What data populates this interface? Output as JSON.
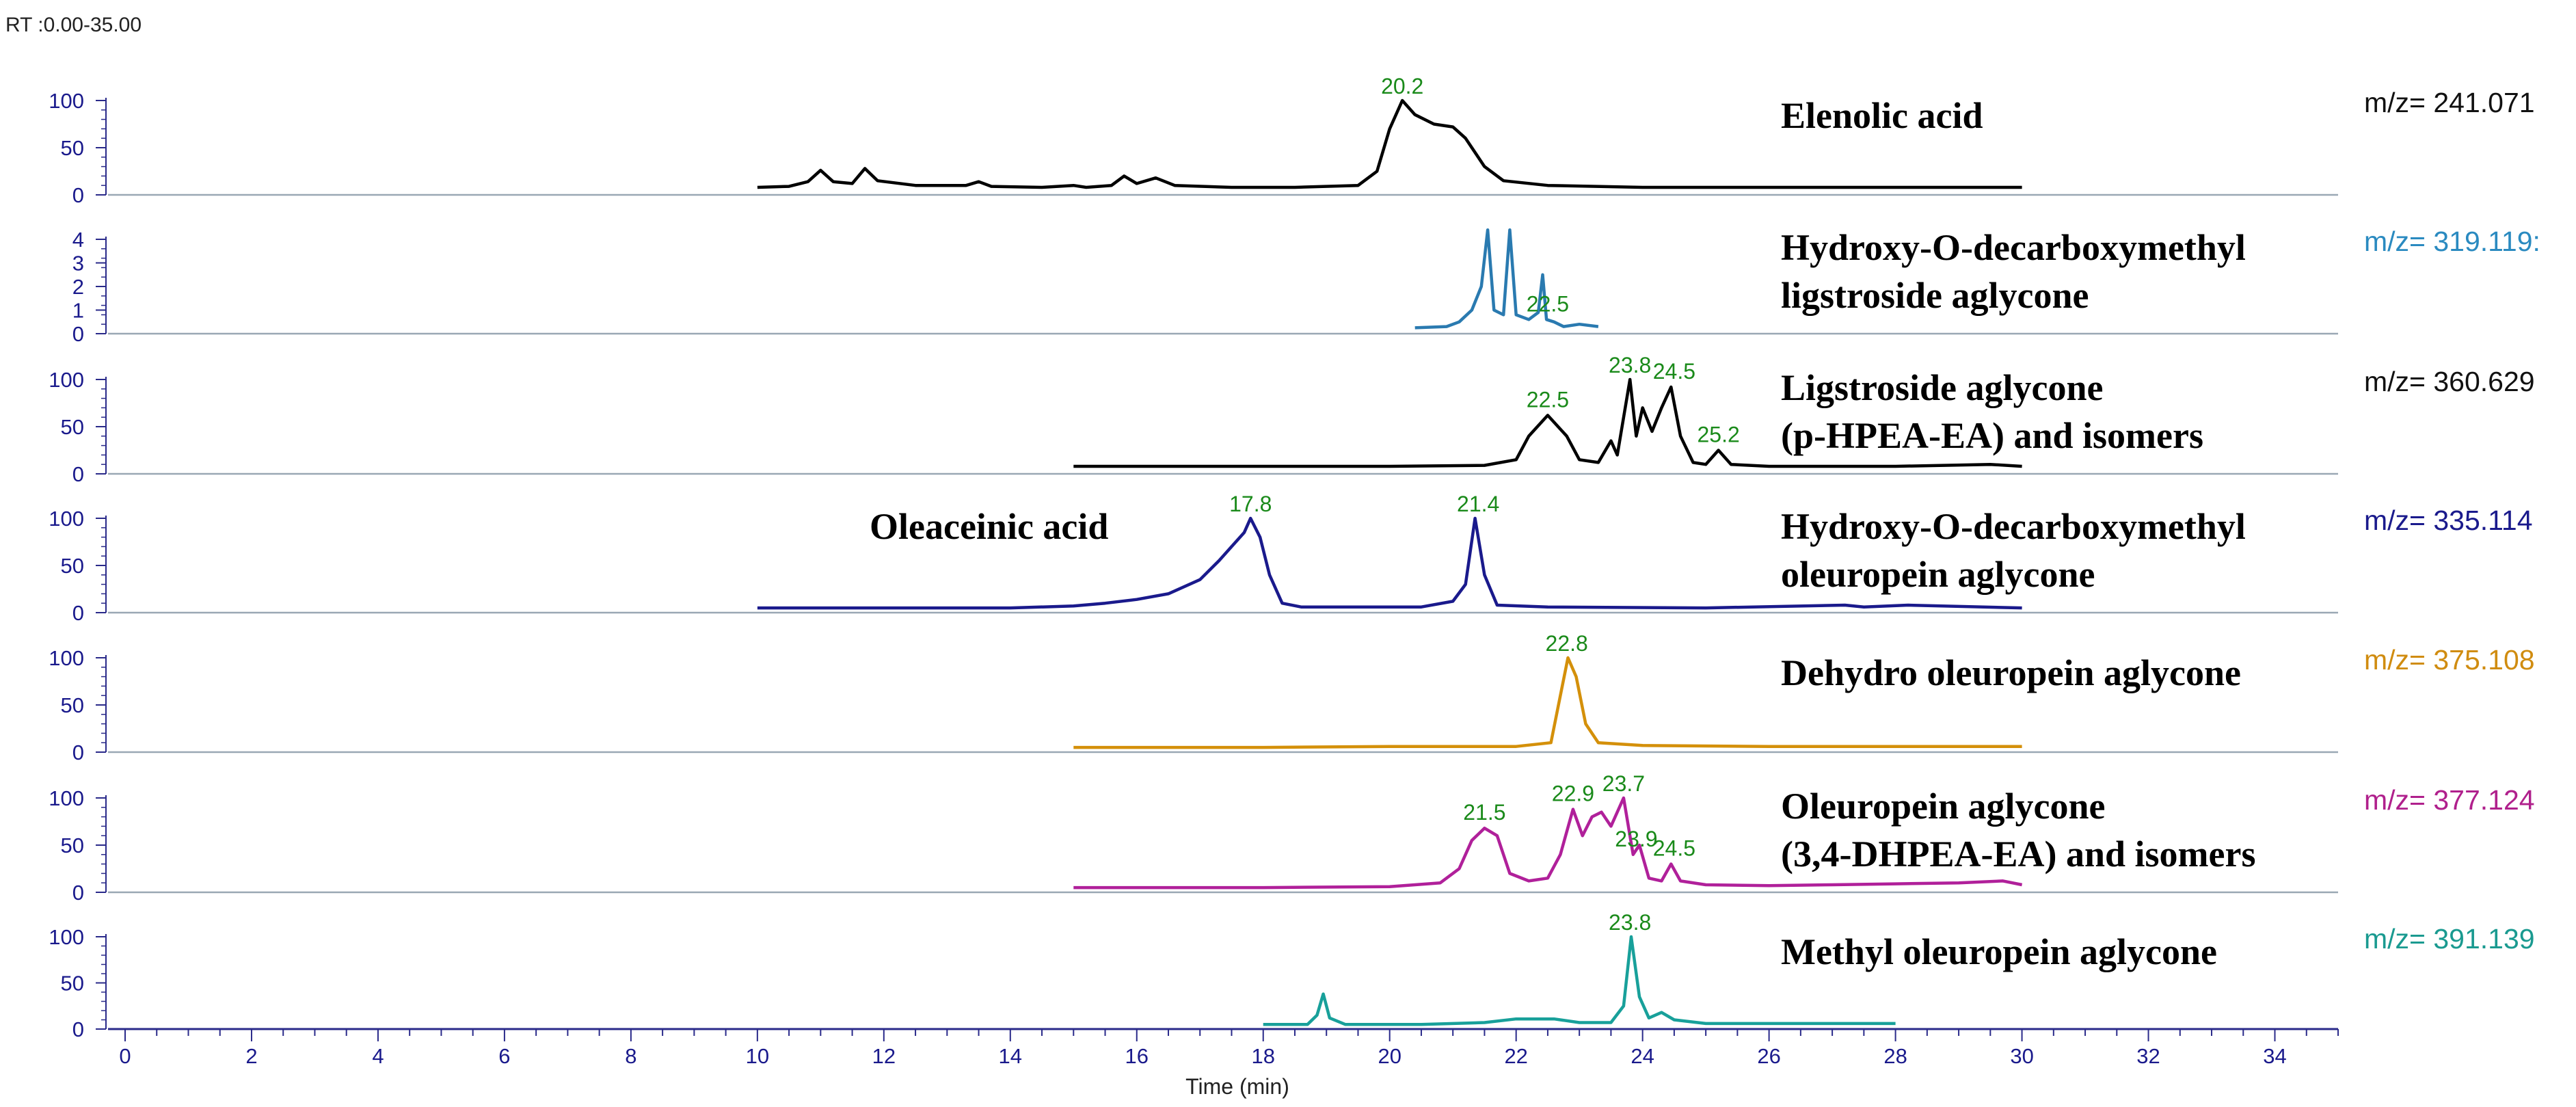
{
  "chart_data": {
    "type": "line",
    "rt_range_label": "RT :0.00-35.00",
    "xlabel": "Time (min)",
    "xlim": [
      0,
      35
    ],
    "x_ticks": [
      "0",
      "2",
      "4",
      "6",
      "8",
      "10",
      "12",
      "14",
      "16",
      "18",
      "20",
      "22",
      "24",
      "26",
      "28",
      "30",
      "32",
      "34"
    ],
    "panels": [
      {
        "name": "Elenolic acid",
        "compound_lines": [
          "Elenolic acid"
        ],
        "mz_label": "m/z= 241.071",
        "color": "#000000",
        "mz_color": "#111111",
        "ylim": [
          0,
          100
        ],
        "y_ticks": [
          "100",
          "50",
          "0"
        ],
        "peak_labels": [
          {
            "x": 20.2,
            "label": "20.2"
          }
        ],
        "points": [
          [
            10,
            8
          ],
          [
            10.5,
            9
          ],
          [
            10.8,
            14
          ],
          [
            11.0,
            26
          ],
          [
            11.2,
            14
          ],
          [
            11.5,
            12
          ],
          [
            11.7,
            28
          ],
          [
            11.9,
            15
          ],
          [
            12.5,
            10
          ],
          [
            13.3,
            10
          ],
          [
            13.5,
            14
          ],
          [
            13.7,
            9
          ],
          [
            14.5,
            8
          ],
          [
            15.0,
            10
          ],
          [
            15.2,
            8
          ],
          [
            15.6,
            10
          ],
          [
            15.8,
            20
          ],
          [
            16.0,
            12
          ],
          [
            16.3,
            18
          ],
          [
            16.6,
            10
          ],
          [
            17.5,
            8
          ],
          [
            18.5,
            8
          ],
          [
            19.5,
            10
          ],
          [
            19.8,
            25
          ],
          [
            20.0,
            70
          ],
          [
            20.2,
            100
          ],
          [
            20.4,
            85
          ],
          [
            20.7,
            75
          ],
          [
            21.0,
            72
          ],
          [
            21.2,
            60
          ],
          [
            21.5,
            30
          ],
          [
            21.8,
            15
          ],
          [
            22.5,
            10
          ],
          [
            24,
            8
          ],
          [
            26,
            8
          ],
          [
            28,
            8
          ],
          [
            30,
            8
          ]
        ],
        "extra_labels": []
      },
      {
        "name": "Hydroxy-O-decarboxymethyl ligstroside aglycone",
        "compound_lines": [
          "Hydroxy-O-decarboxymethyl",
          "ligstroside aglycone"
        ],
        "mz_label": "m/z= 319.119:",
        "color": "#2a7ab0",
        "mz_color": "#2a8ac0",
        "ylim": [
          0,
          4
        ],
        "y_ticks": [
          "4",
          "3",
          "2",
          "1",
          "0"
        ],
        "peak_labels": [
          {
            "x": 22.5,
            "label": "22.5"
          }
        ],
        "points": [
          [
            20.4,
            0.25
          ],
          [
            20.9,
            0.3
          ],
          [
            21.1,
            0.5
          ],
          [
            21.3,
            1.0
          ],
          [
            21.45,
            2.0
          ],
          [
            21.55,
            4.4
          ],
          [
            21.65,
            1.0
          ],
          [
            21.8,
            0.8
          ],
          [
            21.9,
            4.4
          ],
          [
            22.0,
            0.8
          ],
          [
            22.2,
            0.6
          ],
          [
            22.35,
            0.9
          ],
          [
            22.42,
            2.5
          ],
          [
            22.48,
            0.6
          ],
          [
            22.6,
            0.5
          ],
          [
            22.75,
            0.3
          ],
          [
            23.0,
            0.4
          ],
          [
            23.3,
            0.3
          ]
        ],
        "extra_labels": []
      },
      {
        "name": "Ligstroside aglycone (p-HPEA-EA) and isomers",
        "compound_lines": [
          "Ligstroside aglycone",
          "(p-HPEA-EA) and isomers"
        ],
        "mz_label": "m/z= 360.629",
        "color": "#000000",
        "mz_color": "#111111",
        "ylim": [
          0,
          100
        ],
        "y_ticks": [
          "100",
          "50",
          "0"
        ],
        "peak_labels": [
          {
            "x": 22.5,
            "label": "22.5"
          },
          {
            "x": 23.8,
            "label": "23.8"
          },
          {
            "x": 24.5,
            "label": "24.5"
          },
          {
            "x": 25.2,
            "label": "25.2"
          }
        ],
        "points": [
          [
            15,
            8
          ],
          [
            17,
            8
          ],
          [
            19,
            8
          ],
          [
            20,
            8
          ],
          [
            21.5,
            9
          ],
          [
            22.0,
            15
          ],
          [
            22.2,
            40
          ],
          [
            22.5,
            62
          ],
          [
            22.8,
            40
          ],
          [
            23.0,
            15
          ],
          [
            23.3,
            12
          ],
          [
            23.5,
            35
          ],
          [
            23.6,
            20
          ],
          [
            23.8,
            100
          ],
          [
            23.9,
            40
          ],
          [
            24.0,
            70
          ],
          [
            24.15,
            45
          ],
          [
            24.3,
            70
          ],
          [
            24.45,
            92
          ],
          [
            24.6,
            40
          ],
          [
            24.8,
            12
          ],
          [
            25.0,
            10
          ],
          [
            25.2,
            25
          ],
          [
            25.4,
            10
          ],
          [
            26,
            8
          ],
          [
            28,
            8
          ],
          [
            29.5,
            10
          ],
          [
            30,
            8
          ]
        ],
        "extra_labels": []
      },
      {
        "name": "Hydroxy-O-decarboxymethyl oleuropein aglycone",
        "compound_lines": [
          "Hydroxy-O-decarboxymethyl",
          "oleuropein aglycone"
        ],
        "mz_label": "m/z= 335.114",
        "color": "#1a1a8c",
        "mz_color": "#1a1a8c",
        "ylim": [
          0,
          100
        ],
        "y_ticks": [
          "100",
          "50",
          "0"
        ],
        "peak_labels": [
          {
            "x": 17.8,
            "label": "17.8"
          },
          {
            "x": 21.4,
            "label": "21.4"
          }
        ],
        "points": [
          [
            10,
            5
          ],
          [
            14,
            5
          ],
          [
            15,
            7
          ],
          [
            15.5,
            10
          ],
          [
            16,
            14
          ],
          [
            16.5,
            20
          ],
          [
            17.0,
            35
          ],
          [
            17.3,
            55
          ],
          [
            17.5,
            70
          ],
          [
            17.7,
            85
          ],
          [
            17.8,
            100
          ],
          [
            17.95,
            80
          ],
          [
            18.1,
            40
          ],
          [
            18.3,
            10
          ],
          [
            18.6,
            6
          ],
          [
            20.5,
            6
          ],
          [
            21.0,
            12
          ],
          [
            21.2,
            30
          ],
          [
            21.35,
            100
          ],
          [
            21.5,
            40
          ],
          [
            21.7,
            8
          ],
          [
            22.5,
            6
          ],
          [
            25,
            5
          ],
          [
            27.2,
            8
          ],
          [
            27.5,
            6
          ],
          [
            28.2,
            8
          ],
          [
            30,
            5
          ]
        ],
        "extra_labels": [
          {
            "text": "Oleaceinic acid",
            "x": 14.2
          }
        ]
      },
      {
        "name": "Dehydro oleuropein aglycone",
        "compound_lines": [
          "Dehydro oleuropein aglycone"
        ],
        "mz_label": "m/z= 375.108",
        "color": "#d4900a",
        "mz_color": "#d08c10",
        "ylim": [
          0,
          100
        ],
        "y_ticks": [
          "100",
          "50",
          "0"
        ],
        "peak_labels": [
          {
            "x": 22.8,
            "label": "22.8"
          }
        ],
        "points": [
          [
            15,
            5
          ],
          [
            18,
            5
          ],
          [
            20,
            6
          ],
          [
            22,
            6
          ],
          [
            22.55,
            10
          ],
          [
            22.7,
            60
          ],
          [
            22.82,
            100
          ],
          [
            22.95,
            80
          ],
          [
            23.1,
            30
          ],
          [
            23.3,
            10
          ],
          [
            24,
            7
          ],
          [
            26,
            6
          ],
          [
            28,
            6
          ],
          [
            30,
            6
          ]
        ],
        "extra_labels": []
      },
      {
        "name": "Oleuropein aglycone (3,4-DHPEA-EA) and isomers",
        "compound_lines": [
          "Oleuropein aglycone",
          "(3,4-DHPEA-EA) and isomers"
        ],
        "mz_label": "m/z= 377.124",
        "color": "#b0209a",
        "mz_color": "#b0208c",
        "ylim": [
          0,
          100
        ],
        "y_ticks": [
          "100",
          "50",
          "0"
        ],
        "peak_labels": [
          {
            "x": 21.5,
            "label": "21.5"
          },
          {
            "x": 22.9,
            "label": "22.9"
          },
          {
            "x": 23.7,
            "label": "23.7"
          },
          {
            "x": 23.9,
            "label": "23.9"
          },
          {
            "x": 24.5,
            "label": "24.5"
          }
        ],
        "points": [
          [
            15,
            5
          ],
          [
            18,
            5
          ],
          [
            20,
            6
          ],
          [
            20.8,
            10
          ],
          [
            21.1,
            25
          ],
          [
            21.3,
            55
          ],
          [
            21.5,
            68
          ],
          [
            21.7,
            60
          ],
          [
            21.9,
            20
          ],
          [
            22.2,
            12
          ],
          [
            22.5,
            15
          ],
          [
            22.7,
            40
          ],
          [
            22.9,
            88
          ],
          [
            23.05,
            60
          ],
          [
            23.2,
            80
          ],
          [
            23.35,
            85
          ],
          [
            23.5,
            70
          ],
          [
            23.7,
            100
          ],
          [
            23.85,
            40
          ],
          [
            23.95,
            50
          ],
          [
            24.1,
            15
          ],
          [
            24.3,
            12
          ],
          [
            24.45,
            30
          ],
          [
            24.6,
            12
          ],
          [
            25,
            8
          ],
          [
            26,
            7
          ],
          [
            27,
            8
          ],
          [
            28,
            9
          ],
          [
            29,
            10
          ],
          [
            29.7,
            12
          ],
          [
            30,
            8
          ]
        ],
        "extra_labels": []
      },
      {
        "name": "Methyl oleuropein aglycone",
        "compound_lines": [
          "Methyl oleuropein aglycone"
        ],
        "mz_label": "m/z= 391.139",
        "color": "#18a09a",
        "mz_color": "#1a9a90",
        "ylim": [
          0,
          100
        ],
        "y_ticks": [
          "100",
          "50",
          "0"
        ],
        "peak_labels": [
          {
            "x": 23.8,
            "label": "23.8"
          }
        ],
        "points": [
          [
            18,
            5
          ],
          [
            18.7,
            5
          ],
          [
            18.85,
            15
          ],
          [
            18.95,
            38
          ],
          [
            19.05,
            12
          ],
          [
            19.3,
            5
          ],
          [
            20.5,
            5
          ],
          [
            21.5,
            7
          ],
          [
            22.0,
            11
          ],
          [
            22.6,
            11
          ],
          [
            23.0,
            7
          ],
          [
            23.5,
            7
          ],
          [
            23.7,
            25
          ],
          [
            23.82,
            100
          ],
          [
            23.95,
            35
          ],
          [
            24.1,
            12
          ],
          [
            24.3,
            18
          ],
          [
            24.5,
            10
          ],
          [
            25,
            6
          ],
          [
            26,
            6
          ],
          [
            27,
            6
          ],
          [
            28,
            6
          ]
        ],
        "extra_labels": []
      }
    ]
  }
}
